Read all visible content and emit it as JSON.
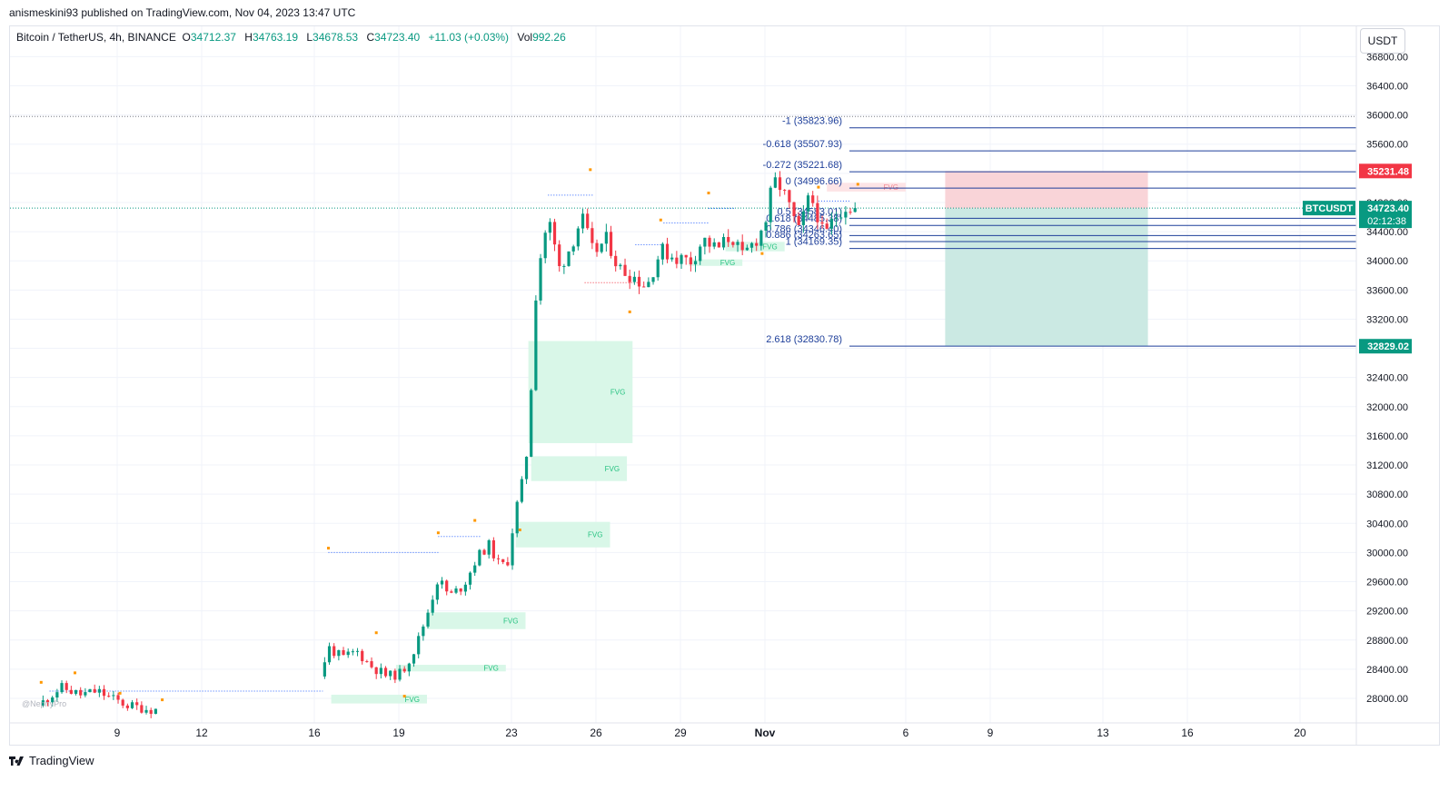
{
  "publisher": "anismeskini93 published on TradingView.com, Nov 04, 2023 13:47 UTC",
  "legend": {
    "symbol": "Bitcoin / TetherUS, 4h, BINANCE",
    "o_label": "O",
    "o": "34712.37",
    "h_label": "H",
    "h": "34763.19",
    "l_label": "L",
    "l": "34678.53",
    "c_label": "C",
    "c": "34723.40",
    "change": "+11.03 (+0.03%)",
    "vol_label": "Vol",
    "vol": "992.26"
  },
  "currency_button": "USDT",
  "footer_brand": "TradingView",
  "watermark": "@NephyPro",
  "colors": {
    "up": "#089981",
    "down": "#f23645",
    "fib": "#1e3f9a",
    "fvg_fill": "#d9f7e8",
    "fvg_text": "#26c281",
    "short_zone": "#f9d4d8",
    "long_zone": "#cbe9e3",
    "swing_dot": "#ff9800"
  },
  "chart_data": {
    "type": "candlestick",
    "interval": "4h",
    "ylim": [
      27700,
      36900
    ],
    "y_ticks": [
      "36800.00",
      "36400.00",
      "36000.00",
      "35600.00",
      "35200.00",
      "34800.00",
      "34400.00",
      "34000.00",
      "33600.00",
      "33200.00",
      "32800.00",
      "32400.00",
      "32000.00",
      "31600.00",
      "31200.00",
      "30800.00",
      "30400.00",
      "30000.00",
      "29600.00",
      "29200.00",
      "28800.00",
      "28400.00",
      "28000.00"
    ],
    "x_ticks": [
      {
        "label": "9",
        "day": 9
      },
      {
        "label": "12",
        "day": 12
      },
      {
        "label": "16",
        "day": 16
      },
      {
        "label": "19",
        "day": 19
      },
      {
        "label": "23",
        "day": 23
      },
      {
        "label": "26",
        "day": 26
      },
      {
        "label": "29",
        "day": 29
      },
      {
        "label": "Nov",
        "day": 32
      },
      {
        "label": "6",
        "day": 37
      },
      {
        "label": "9",
        "day": 40
      },
      {
        "label": "13",
        "day": 44
      },
      {
        "label": "16",
        "day": 47
      },
      {
        "label": "20",
        "day": 51
      }
    ],
    "candle_days_start": 6.2,
    "candle_days_end": 35.35,
    "anchors": [
      [
        6.2,
        27900
      ],
      [
        7.0,
        28150
      ],
      [
        7.7,
        28050
      ],
      [
        8.3,
        28100
      ],
      [
        8.8,
        28000
      ],
      [
        9.4,
        27900
      ],
      [
        10.2,
        27850
      ],
      [
        12.0,
        27800
      ],
      [
        15.9,
        27900
      ],
      [
        16.5,
        28700
      ],
      [
        17.0,
        28550
      ],
      [
        17.5,
        28650
      ],
      [
        18.0,
        28450
      ],
      [
        18.6,
        28300
      ],
      [
        19.1,
        28350
      ],
      [
        19.6,
        28700
      ],
      [
        20.0,
        29150
      ],
      [
        20.4,
        29650
      ],
      [
        20.8,
        29400
      ],
      [
        21.3,
        29550
      ],
      [
        21.8,
        29950
      ],
      [
        22.2,
        30100
      ],
      [
        22.6,
        29800
      ],
      [
        22.9,
        29900
      ],
      [
        23.1,
        30500
      ],
      [
        23.35,
        30900
      ],
      [
        23.6,
        31500
      ],
      [
        23.9,
        33800
      ],
      [
        24.3,
        34600
      ],
      [
        24.7,
        33900
      ],
      [
        25.1,
        34200
      ],
      [
        25.5,
        34600
      ],
      [
        25.9,
        34100
      ],
      [
        26.4,
        34300
      ],
      [
        26.8,
        33900
      ],
      [
        27.3,
        33800
      ],
      [
        27.8,
        33650
      ],
      [
        28.3,
        34150
      ],
      [
        28.8,
        34050
      ],
      [
        29.4,
        34000
      ],
      [
        29.8,
        34300
      ],
      [
        30.3,
        34150
      ],
      [
        30.8,
        34350
      ],
      [
        31.2,
        34050
      ],
      [
        31.7,
        34300
      ],
      [
        32.0,
        34500
      ],
      [
        32.3,
        35100
      ],
      [
        32.6,
        35000
      ],
      [
        32.9,
        34700
      ],
      [
        33.2,
        34400
      ],
      [
        33.6,
        34900
      ],
      [
        33.9,
        34600
      ],
      [
        34.1,
        34300
      ],
      [
        34.4,
        34550
      ],
      [
        34.8,
        34750
      ],
      [
        35.35,
        34723
      ]
    ],
    "last_price": {
      "label": "BTCUSDT",
      "price": "34723.40",
      "countdown": "02:12:38"
    },
    "axis_labels": [
      {
        "price": "35231.48",
        "value": 35231.48,
        "kind": "stop"
      },
      {
        "price": "34718.29",
        "value": 34718.29,
        "kind": "entry"
      },
      {
        "price": "32829.02",
        "value": 32829.02,
        "kind": "target"
      }
    ],
    "fib_levels": [
      {
        "label": "-1 (35823.96)",
        "value": 35823.96
      },
      {
        "label": "-0.618 (35507.93)",
        "value": 35507.93
      },
      {
        "label": "-0.272 (35221.68)",
        "value": 35221.68
      },
      {
        "label": "0 (34996.66)",
        "value": 34996.66
      },
      {
        "label": "0.5 (34583.01)",
        "value": 34583.01
      },
      {
        "label": "0.618 (34485.38)",
        "value": 34485.38
      },
      {
        "label": "0.786 (34346.40)",
        "value": 34346.4
      },
      {
        "label": "0.886 (34263.65)",
        "value": 34263.65
      },
      {
        "label": "1 (34169.35)",
        "value": 34169.35
      },
      {
        "label": "2.618 (32830.78)",
        "value": 32830.78
      }
    ],
    "fib_x_days": [
      35.0,
      55.0
    ],
    "horizontal_dotted": [
      {
        "value": 35980,
        "color": "#787b86"
      },
      {
        "value": 34723.4,
        "color": "#089981"
      }
    ],
    "position": {
      "type": "short",
      "entry": 34718.29,
      "stop": 35231.48,
      "target": 32829.02,
      "x_days": [
        38.4,
        45.6
      ]
    },
    "fvg_zones": [
      {
        "label": "FVG",
        "x": [
          23.6,
          27.3
        ],
        "y": [
          31500,
          32900
        ]
      },
      {
        "label": "FVG",
        "x": [
          23.7,
          27.1
        ],
        "y": [
          30980,
          31320
        ]
      },
      {
        "label": "FVG",
        "x": [
          23.15,
          26.5
        ],
        "y": [
          30070,
          30420
        ]
      },
      {
        "label": "FVG",
        "x": [
          20.0,
          23.5
        ],
        "y": [
          28950,
          29180
        ]
      },
      {
        "label": "FVG",
        "x": [
          18.9,
          22.8
        ],
        "y": [
          28370,
          28460
        ]
      },
      {
        "label": "FVG",
        "x": [
          16.6,
          20.0
        ],
        "y": [
          27930,
          28050
        ]
      },
      {
        "label": "FVG",
        "x": [
          29.3,
          31.2
        ],
        "y": [
          33930,
          34020
        ]
      },
      {
        "label": "FVG",
        "x": [
          30.6,
          32.7
        ],
        "y": [
          34130,
          34260
        ]
      },
      {
        "label": "FVG",
        "x": [
          34.2,
          37.0
        ],
        "y": [
          34950,
          35070
        ],
        "bearish": true
      }
    ],
    "swing_dots": [
      [
        6.3,
        28220
      ],
      [
        7.5,
        28350
      ],
      [
        9.1,
        28070
      ],
      [
        10.6,
        27980
      ],
      [
        16.5,
        30060
      ],
      [
        18.2,
        28900
      ],
      [
        19.2,
        28030
      ],
      [
        20.4,
        30270
      ],
      [
        21.7,
        30440
      ],
      [
        23.3,
        30310
      ],
      [
        25.8,
        35250
      ],
      [
        27.2,
        33300
      ],
      [
        28.3,
        34560
      ],
      [
        30.0,
        34930
      ],
      [
        31.9,
        34100
      ],
      [
        33.9,
        35010
      ],
      [
        35.3,
        35050
      ]
    ],
    "dotted_levels": [
      {
        "value": 28100,
        "x": [
          6.6,
          16.3
        ],
        "color": "#2962ff"
      },
      {
        "value": 30000,
        "x": [
          16.5,
          20.4
        ],
        "color": "#2962ff"
      },
      {
        "value": 30220,
        "x": [
          20.4,
          21.9
        ],
        "color": "#2962ff"
      },
      {
        "value": 34900,
        "x": [
          24.3,
          25.9
        ],
        "color": "#2962ff"
      },
      {
        "value": 33700,
        "x": [
          25.6,
          27.6
        ],
        "color": "#f23645"
      },
      {
        "value": 34220,
        "x": [
          27.4,
          28.4
        ],
        "color": "#2962ff"
      },
      {
        "value": 34520,
        "x": [
          28.4,
          30.0
        ],
        "color": "#2962ff"
      },
      {
        "value": 34720,
        "x": [
          30.0,
          30.9
        ],
        "color": "#2962ff"
      },
      {
        "value": 34820,
        "x": [
          33.9,
          35.0
        ],
        "color": "#2962ff"
      }
    ]
  }
}
